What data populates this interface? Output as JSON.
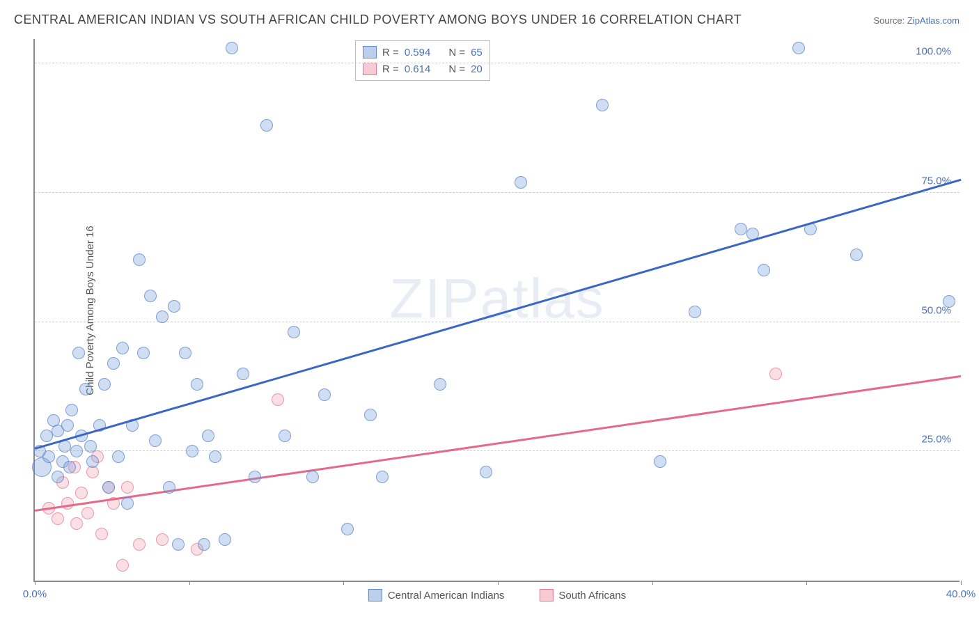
{
  "title": "CENTRAL AMERICAN INDIAN VS SOUTH AFRICAN CHILD POVERTY AMONG BOYS UNDER 16 CORRELATION CHART",
  "source_prefix": "Source: ",
  "source_link": "ZipAtlas.com",
  "ylabel": "Child Poverty Among Boys Under 16",
  "watermark": "ZIPatlas",
  "chart": {
    "type": "scatter-with-trend",
    "xlim": [
      0,
      40
    ],
    "ylim": [
      0,
      105
    ],
    "xticks": [
      {
        "v": 0,
        "label": "0.0%"
      },
      {
        "v": 6.67,
        "label": ""
      },
      {
        "v": 13.33,
        "label": ""
      },
      {
        "v": 20.0,
        "label": ""
      },
      {
        "v": 26.67,
        "label": ""
      },
      {
        "v": 33.33,
        "label": ""
      },
      {
        "v": 40.0,
        "label": "40.0%"
      }
    ],
    "yticks": [
      {
        "v": 25,
        "label": "25.0%"
      },
      {
        "v": 50,
        "label": "50.0%"
      },
      {
        "v": 75,
        "label": "75.0%"
      },
      {
        "v": 100,
        "label": "100.0%"
      }
    ],
    "background_color": "#ffffff",
    "grid_color": "#d0d0d0",
    "axis_color": "#888888",
    "tick_label_color": "#4a72b8",
    "watermark_color": "rgba(120,150,200,0.18)"
  },
  "series": {
    "blue": {
      "name": "Central American Indians",
      "color_fill": "rgba(120,160,220,0.35)",
      "color_stroke": "rgba(90,130,200,0.7)",
      "trend_color": "#3a66c4",
      "R": "0.594",
      "N": "65",
      "marker_radius": 9,
      "trend": {
        "x1": 0,
        "y1": 26,
        "x2": 40,
        "y2": 78
      },
      "points": [
        {
          "x": 0.2,
          "y": 25
        },
        {
          "x": 0.3,
          "y": 22,
          "r": 14
        },
        {
          "x": 0.5,
          "y": 28
        },
        {
          "x": 0.6,
          "y": 24
        },
        {
          "x": 0.8,
          "y": 31
        },
        {
          "x": 1.0,
          "y": 20
        },
        {
          "x": 1.0,
          "y": 29
        },
        {
          "x": 1.2,
          "y": 23
        },
        {
          "x": 1.3,
          "y": 26
        },
        {
          "x": 1.4,
          "y": 30
        },
        {
          "x": 1.5,
          "y": 22
        },
        {
          "x": 1.6,
          "y": 33
        },
        {
          "x": 1.8,
          "y": 25
        },
        {
          "x": 1.9,
          "y": 44
        },
        {
          "x": 2.0,
          "y": 28
        },
        {
          "x": 2.2,
          "y": 37
        },
        {
          "x": 2.4,
          "y": 26
        },
        {
          "x": 2.5,
          "y": 23
        },
        {
          "x": 2.8,
          "y": 30
        },
        {
          "x": 3.0,
          "y": 38
        },
        {
          "x": 3.2,
          "y": 18
        },
        {
          "x": 3.4,
          "y": 42
        },
        {
          "x": 3.6,
          "y": 24
        },
        {
          "x": 3.8,
          "y": 45
        },
        {
          "x": 4.0,
          "y": 15
        },
        {
          "x": 4.2,
          "y": 30
        },
        {
          "x": 4.5,
          "y": 62
        },
        {
          "x": 4.7,
          "y": 44
        },
        {
          "x": 5.0,
          "y": 55
        },
        {
          "x": 5.2,
          "y": 27
        },
        {
          "x": 5.5,
          "y": 51
        },
        {
          "x": 5.8,
          "y": 18
        },
        {
          "x": 6.0,
          "y": 53
        },
        {
          "x": 6.2,
          "y": 7
        },
        {
          "x": 6.5,
          "y": 44
        },
        {
          "x": 6.8,
          "y": 25
        },
        {
          "x": 7.0,
          "y": 38
        },
        {
          "x": 7.3,
          "y": 7
        },
        {
          "x": 7.5,
          "y": 28
        },
        {
          "x": 7.8,
          "y": 24
        },
        {
          "x": 8.2,
          "y": 8
        },
        {
          "x": 8.5,
          "y": 103
        },
        {
          "x": 9.0,
          "y": 40
        },
        {
          "x": 9.5,
          "y": 20
        },
        {
          "x": 10.0,
          "y": 88
        },
        {
          "x": 10.8,
          "y": 28
        },
        {
          "x": 11.2,
          "y": 48
        },
        {
          "x": 12.0,
          "y": 20
        },
        {
          "x": 12.5,
          "y": 36
        },
        {
          "x": 13.5,
          "y": 10
        },
        {
          "x": 14.5,
          "y": 32
        },
        {
          "x": 15.0,
          "y": 20
        },
        {
          "x": 17.5,
          "y": 38
        },
        {
          "x": 19.5,
          "y": 21
        },
        {
          "x": 21.0,
          "y": 77
        },
        {
          "x": 24.5,
          "y": 92
        },
        {
          "x": 27.0,
          "y": 23
        },
        {
          "x": 28.5,
          "y": 52
        },
        {
          "x": 30.5,
          "y": 68
        },
        {
          "x": 31.0,
          "y": 67
        },
        {
          "x": 31.5,
          "y": 60
        },
        {
          "x": 33.0,
          "y": 103
        },
        {
          "x": 33.5,
          "y": 68
        },
        {
          "x": 35.5,
          "y": 63
        },
        {
          "x": 39.5,
          "y": 54
        }
      ]
    },
    "pink": {
      "name": "South Africans",
      "color_fill": "rgba(240,150,170,0.30)",
      "color_stroke": "rgba(230,110,140,0.65)",
      "trend_color": "#e46a8a",
      "R": "0.614",
      "N": "20",
      "marker_radius": 9,
      "trend": {
        "x1": 0,
        "y1": 14,
        "x2": 40,
        "y2": 40
      },
      "points": [
        {
          "x": 0.6,
          "y": 14
        },
        {
          "x": 1.0,
          "y": 12
        },
        {
          "x": 1.2,
          "y": 19
        },
        {
          "x": 1.4,
          "y": 15
        },
        {
          "x": 1.7,
          "y": 22
        },
        {
          "x": 1.8,
          "y": 11
        },
        {
          "x": 2.0,
          "y": 17
        },
        {
          "x": 2.3,
          "y": 13
        },
        {
          "x": 2.5,
          "y": 21
        },
        {
          "x": 2.7,
          "y": 24
        },
        {
          "x": 2.9,
          "y": 9
        },
        {
          "x": 3.2,
          "y": 18
        },
        {
          "x": 3.4,
          "y": 15
        },
        {
          "x": 3.8,
          "y": 3
        },
        {
          "x": 4.0,
          "y": 18
        },
        {
          "x": 4.5,
          "y": 7
        },
        {
          "x": 5.5,
          "y": 8
        },
        {
          "x": 7.0,
          "y": 6
        },
        {
          "x": 10.5,
          "y": 35
        },
        {
          "x": 32.0,
          "y": 40
        }
      ]
    }
  },
  "legend_top": {
    "r_label": "R =",
    "n_label": "N ="
  },
  "legend_bottom": {
    "item1": "Central American Indians",
    "item2": "South Africans"
  }
}
